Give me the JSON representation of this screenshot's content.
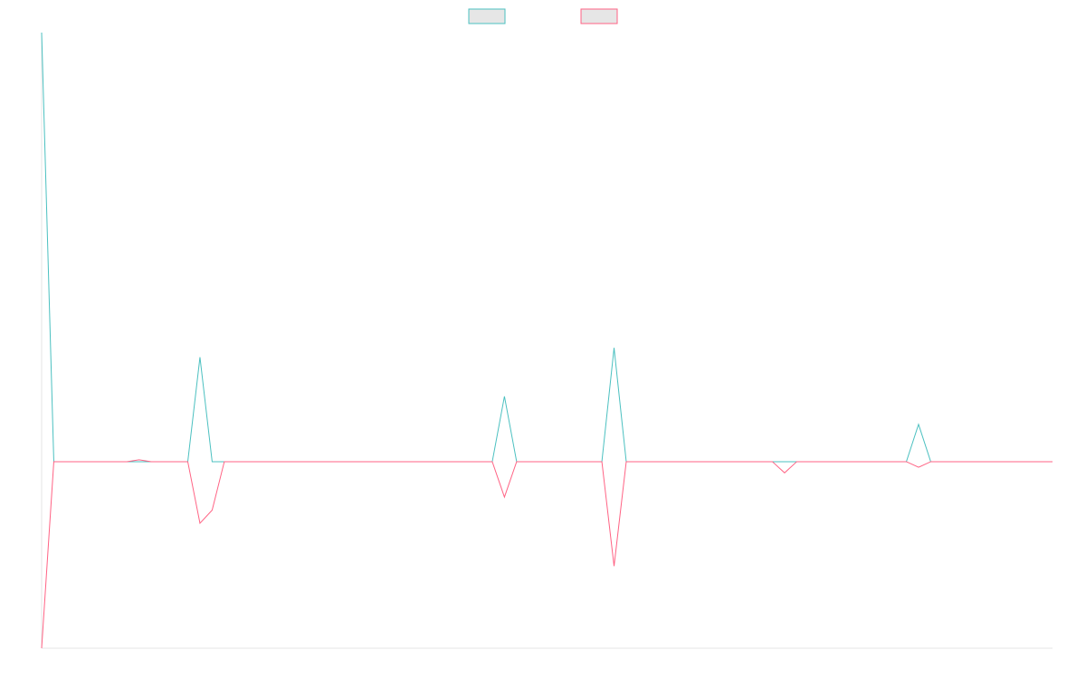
{
  "chart_data": {
    "type": "line",
    "title": "",
    "xlabel": "",
    "ylabel": "",
    "legend": {
      "placement": "top-center",
      "show_labels": false
    },
    "grid": false,
    "x_count": 84,
    "ylim": [
      -100,
      230
    ],
    "series": [
      {
        "color": "#4bc0c0",
        "values": [
          230,
          0,
          0,
          0,
          0,
          0,
          0,
          0,
          0,
          0,
          0,
          0,
          0,
          56,
          0,
          0,
          0,
          0,
          0,
          0,
          0,
          0,
          0,
          0,
          0,
          0,
          0,
          0,
          0,
          0,
          0,
          0,
          0,
          0,
          0,
          0,
          0,
          0,
          35,
          0,
          0,
          0,
          0,
          0,
          0,
          0,
          0,
          61,
          0,
          0,
          0,
          0,
          0,
          0,
          0,
          0,
          0,
          0,
          0,
          0,
          0,
          0,
          0,
          0,
          0,
          0,
          0,
          0,
          0,
          0,
          0,
          0,
          20,
          0,
          0,
          0,
          0,
          0,
          0,
          0,
          0,
          0,
          0,
          0
        ]
      },
      {
        "color": "#ff6384",
        "values": [
          -100,
          0,
          0,
          0,
          0,
          0,
          0,
          0,
          1,
          0,
          0,
          0,
          0,
          -33,
          -26,
          0,
          0,
          0,
          0,
          0,
          0,
          0,
          0,
          0,
          0,
          0,
          0,
          0,
          0,
          0,
          0,
          0,
          0,
          0,
          0,
          0,
          0,
          0,
          -19,
          0,
          0,
          0,
          0,
          0,
          0,
          0,
          0,
          -56,
          0,
          0,
          0,
          0,
          0,
          0,
          0,
          0,
          0,
          0,
          0,
          0,
          0,
          -6,
          0,
          0,
          0,
          0,
          0,
          0,
          0,
          0,
          0,
          0,
          -3,
          0,
          0,
          0,
          0,
          0,
          0,
          0,
          0,
          0,
          0,
          0
        ]
      }
    ]
  }
}
